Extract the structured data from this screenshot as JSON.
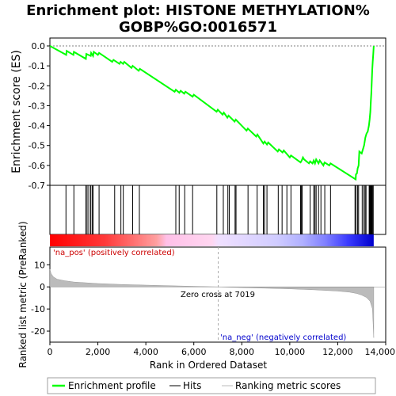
{
  "chart_data": {
    "type": "line",
    "title_line1": "Enrichment plot: HISTONE METHYLATION%",
    "title_line2": "GOBP%GO:0016571",
    "top_panel": {
      "ylabel": "Enrichment score (ES)",
      "ylim": [
        -0.7,
        0.0
      ],
      "yticks": [
        0.0,
        -0.1,
        -0.2,
        -0.3,
        -0.4,
        -0.5,
        -0.6,
        -0.7
      ],
      "ytick_labels": [
        "0.0",
        "-0.1",
        "-0.2",
        "-0.3",
        "-0.4",
        "-0.5",
        "-0.6",
        "-0.7"
      ],
      "line_color": "#00ff00",
      "es_curve": {
        "x": [
          0,
          680,
          700,
          980,
          1000,
          1500,
          1520,
          1700,
          1720,
          1800,
          1830,
          2000,
          2050,
          2600,
          2650,
          2900,
          2950,
          3050,
          3100,
          3400,
          3450,
          3700,
          3750,
          5200,
          5250,
          5400,
          5450,
          5600,
          5650,
          5950,
          6000,
          6950,
          7000,
          7200,
          7250,
          7400,
          7450,
          7700,
          7750,
          8200,
          8250,
          8600,
          8650,
          8900,
          8950,
          9050,
          9100,
          9500,
          9550,
          9700,
          9750,
          10000,
          10050,
          10450,
          10500,
          10550,
          10600,
          10800,
          10850,
          10950,
          11000,
          11050,
          11100,
          11200,
          11250,
          11400,
          11450,
          11650,
          11700,
          12750,
          12760,
          12800,
          12830,
          12870,
          12900,
          13000,
          13050,
          13100,
          13150,
          13200,
          13250,
          13300,
          13330,
          13360,
          13380,
          13400,
          13420,
          13440,
          13460,
          13480,
          13500
        ],
        "y": [
          0.0,
          -0.045,
          -0.025,
          -0.045,
          -0.03,
          -0.065,
          -0.04,
          -0.05,
          -0.035,
          -0.05,
          -0.03,
          -0.045,
          -0.035,
          -0.08,
          -0.07,
          -0.09,
          -0.08,
          -0.09,
          -0.08,
          -0.11,
          -0.1,
          -0.125,
          -0.115,
          -0.23,
          -0.22,
          -0.235,
          -0.225,
          -0.24,
          -0.23,
          -0.255,
          -0.245,
          -0.33,
          -0.32,
          -0.345,
          -0.335,
          -0.36,
          -0.35,
          -0.38,
          -0.37,
          -0.425,
          -0.415,
          -0.455,
          -0.445,
          -0.49,
          -0.48,
          -0.495,
          -0.485,
          -0.53,
          -0.52,
          -0.535,
          -0.525,
          -0.56,
          -0.55,
          -0.585,
          -0.575,
          -0.56,
          -0.57,
          -0.59,
          -0.58,
          -0.59,
          -0.575,
          -0.59,
          -0.57,
          -0.59,
          -0.575,
          -0.6,
          -0.585,
          -0.6,
          -0.59,
          -0.67,
          -0.645,
          -0.64,
          -0.615,
          -0.6,
          -0.53,
          -0.54,
          -0.52,
          -0.5,
          -0.46,
          -0.44,
          -0.43,
          -0.4,
          -0.37,
          -0.33,
          -0.28,
          -0.24,
          -0.18,
          -0.12,
          -0.08,
          -0.04,
          0.0
        ]
      }
    },
    "hits_panel": {
      "hits": [
        670,
        1000,
        1500,
        1550,
        1620,
        1700,
        1760,
        1800,
        2050,
        2700,
        2960,
        3060,
        3450,
        3730,
        5250,
        5390,
        5620,
        5950,
        6960,
        7230,
        7420,
        7480,
        7720,
        7760,
        8260,
        8640,
        8900,
        8950,
        9050,
        9520,
        9680,
        9880,
        10050,
        10450,
        10480,
        10520,
        10850,
        11000,
        11050,
        11100,
        11200,
        11300,
        11460,
        11700,
        12720,
        12760,
        12830,
        12870,
        13020,
        13090,
        13140,
        13180,
        13310,
        13340,
        13360,
        13390,
        13410,
        13430,
        13450,
        13480
      ]
    },
    "metric_panel": {
      "ylabel": "Ranked list metric (PreRanked)",
      "ylim": [
        -25,
        18
      ],
      "yticks": [
        10,
        0,
        -10,
        -20
      ],
      "ytick_labels": [
        "10",
        "0",
        "-10",
        "-20"
      ],
      "pos_label": "'na_pos' (positively correlated)",
      "neg_label": "'na_neg' (negatively correlated)",
      "zero_cross_label": "Zero cross at 7019",
      "zero_cross": 7019,
      "pos_color": "#cc0000",
      "neg_color": "#0000cc",
      "metric_curve": {
        "x": [
          0,
          50,
          150,
          300,
          600,
          1000,
          2000,
          3000,
          4000,
          5000,
          6000,
          7019,
          8000,
          9000,
          10000,
          11000,
          12000,
          12500,
          12800,
          13000,
          13200,
          13350,
          13450,
          13500
        ],
        "y": [
          8,
          6,
          4.5,
          3.5,
          2.8,
          2.2,
          1.5,
          1.1,
          0.8,
          0.5,
          0.25,
          0.0,
          -0.3,
          -0.6,
          -0.9,
          -1.3,
          -1.9,
          -2.4,
          -3.0,
          -3.7,
          -4.8,
          -6.5,
          -10,
          -23
        ]
      }
    },
    "xlabel": "Rank in Ordered Dataset",
    "xlim": [
      0,
      14000
    ],
    "xticks": [
      0,
      2000,
      4000,
      6000,
      8000,
      10000,
      12000,
      14000
    ],
    "xtick_labels": [
      "0",
      "2,000",
      "4,000",
      "6,000",
      "8,000",
      "10,000",
      "12,000",
      "14,000"
    ],
    "n_genes": 13500,
    "legend": {
      "placement": "bottom",
      "items": [
        "Enrichment profile",
        "Hits",
        "Ranking metric scores"
      ],
      "colors": [
        "#00ff00",
        "#000000",
        "#bbbbbb"
      ]
    }
  }
}
